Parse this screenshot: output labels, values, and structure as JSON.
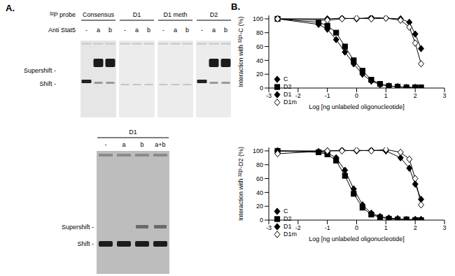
{
  "panel_labels": [
    "A.",
    "B."
  ],
  "gel_top": {
    "probe_label": "³²P probe",
    "antibody_label": "Anti Stat5",
    "groups": [
      {
        "name": "Consensus",
        "lanes": [
          "-",
          "a",
          "b"
        ]
      },
      {
        "name": "D1",
        "lanes": [
          "-",
          "a",
          "b"
        ]
      },
      {
        "name": "D1 meth",
        "lanes": [
          "-",
          "a",
          "b"
        ]
      },
      {
        "name": "D2",
        "lanes": [
          "-",
          "a",
          "b"
        ]
      }
    ],
    "band_labels": [
      "Supershift -",
      "Shift -"
    ]
  },
  "gel_bottom": {
    "groups": [
      {
        "name": "D1",
        "lanes": [
          "-",
          "a",
          "b",
          "a+b"
        ]
      }
    ],
    "band_labels": [
      "Supershift -",
      "Shift -"
    ]
  },
  "chart_data": [
    {
      "type": "scatter",
      "x_label": "Log [ng unlabeled oligonucleotide]",
      "y_label": "Interaction with ³²P-C (%)",
      "xlim": [
        -3,
        3
      ],
      "xticks": [
        -3,
        -2,
        -1,
        0,
        1,
        2,
        3
      ],
      "ylim": [
        0,
        105
      ],
      "yticks": [
        0,
        20,
        40,
        60,
        80,
        100
      ],
      "grid": false,
      "legend": "lower left",
      "series": [
        {
          "name": "C",
          "color": "#000000",
          "marker": "diamond",
          "line_style": "solid",
          "x": [
            -2.7,
            -1.3,
            -1,
            -0.7,
            -0.4,
            -0.1,
            0.2,
            0.5,
            0.8,
            1.1,
            1.4,
            1.7,
            2,
            2.2
          ],
          "values": [
            100,
            92,
            85,
            70,
            52,
            35,
            20,
            10,
            5,
            3,
            2,
            1,
            1,
            0
          ]
        },
        {
          "name": "D2",
          "color": "#000000",
          "marker": "square",
          "line_style": "solid",
          "x": [
            -2.7,
            -1.3,
            -1,
            -0.7,
            -0.4,
            -0.1,
            0.2,
            0.5,
            0.8,
            1.1,
            1.4,
            1.7,
            2,
            2.2
          ],
          "values": [
            100,
            95,
            90,
            80,
            60,
            40,
            25,
            12,
            6,
            3,
            2,
            1,
            1,
            1
          ]
        },
        {
          "name": "D1",
          "color": "#000000",
          "marker": "diamond",
          "line_style": "solid",
          "x": [
            -2.7,
            -1,
            -0.5,
            0,
            0.5,
            1,
            1.5,
            1.8,
            2,
            2.2
          ],
          "values": [
            100,
            100,
            101,
            100,
            102,
            101,
            100,
            95,
            78,
            57
          ]
        },
        {
          "name": "D1m",
          "color": "#000000",
          "marker": "open_diamond",
          "line_style": "solid",
          "x": [
            -2.7,
            -1,
            -0.5,
            0,
            0.5,
            1,
            1.5,
            1.8,
            2,
            2.2
          ],
          "values": [
            100,
            98,
            100,
            101,
            100,
            101,
            98,
            88,
            65,
            35
          ]
        }
      ]
    },
    {
      "type": "scatter",
      "x_label": "Log [ng unlabeled oligonucleotide]",
      "y_label": "Interaction with ³²P-D2 (%)",
      "xlim": [
        -3,
        3
      ],
      "xticks": [
        -3,
        -2,
        -1,
        0,
        1,
        2,
        3
      ],
      "ylim": [
        0,
        105
      ],
      "yticks": [
        0,
        20,
        40,
        60,
        80,
        100
      ],
      "grid": false,
      "legend": "lower left",
      "series": [
        {
          "name": "C",
          "color": "#000000",
          "marker": "diamond",
          "line_style": "solid",
          "x": [
            -2.7,
            -1.3,
            -1,
            -0.7,
            -0.4,
            -0.1,
            0.2,
            0.5,
            0.8,
            1.1,
            1.4,
            1.7,
            2,
            2.2
          ],
          "values": [
            100,
            99,
            97,
            90,
            72,
            45,
            22,
            10,
            5,
            3,
            2,
            1,
            1,
            1
          ]
        },
        {
          "name": "D2",
          "color": "#000000",
          "marker": "square",
          "line_style": "solid",
          "x": [
            -2.7,
            -1.3,
            -1,
            -0.7,
            -0.4,
            -0.1,
            0.2,
            0.5,
            0.8,
            1.1,
            1.4,
            1.7,
            2,
            2.2
          ],
          "values": [
            100,
            98,
            95,
            86,
            64,
            38,
            18,
            8,
            4,
            2,
            1,
            1,
            0,
            0
          ]
        },
        {
          "name": "D1",
          "color": "#000000",
          "marker": "diamond",
          "line_style": "solid",
          "x": [
            -2.7,
            -1,
            -0.5,
            0,
            0.5,
            1,
            1.5,
            1.8,
            2,
            2.2
          ],
          "values": [
            100,
            100,
            101,
            100,
            101,
            100,
            90,
            75,
            52,
            30
          ]
        },
        {
          "name": "D1m",
          "color": "#000000",
          "marker": "open_diamond",
          "line_style": "solid",
          "x": [
            -2.7,
            -1,
            -0.5,
            0,
            0.5,
            1,
            1.5,
            1.8,
            2,
            2.2
          ],
          "values": [
            96,
            100,
            100,
            101,
            100,
            102,
            98,
            88,
            60,
            22
          ]
        }
      ]
    }
  ]
}
